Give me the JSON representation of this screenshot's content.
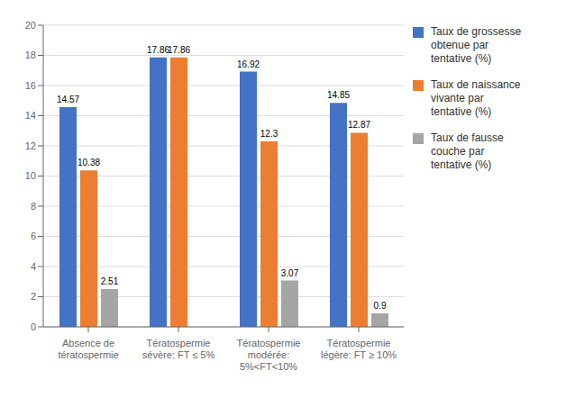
{
  "chart_data": {
    "type": "bar",
    "categories": [
      "Absence de\ntératospermie",
      "Tératospermie\nsévère: FT ≤ 5%",
      "Tératospermie\nmodérée:\n5%<FT<10%",
      "Tératospermie\nlégère: FT ≥ 10%"
    ],
    "series": [
      {
        "name": "Taux de grossesse\nobtenue par\ntentative (%)",
        "values": [
          14.57,
          17.86,
          16.92,
          14.85
        ],
        "color": "#4472C4"
      },
      {
        "name": "Taux de naissance\nvivante par\ntentative (%)",
        "values": [
          10.38,
          17.86,
          12.3,
          12.87
        ],
        "color": "#ED7D31"
      },
      {
        "name": "Taux de fausse\ncouche par\ntentative (%)",
        "values": [
          2.51,
          0,
          3.07,
          0.9
        ],
        "color": "#A5A5A5"
      }
    ],
    "ylim": [
      0,
      20
    ],
    "yticks": [
      0,
      2,
      4,
      6,
      8,
      10,
      12,
      14,
      16,
      18,
      20
    ],
    "grid": true,
    "legend": "right",
    "data_labels": true
  }
}
